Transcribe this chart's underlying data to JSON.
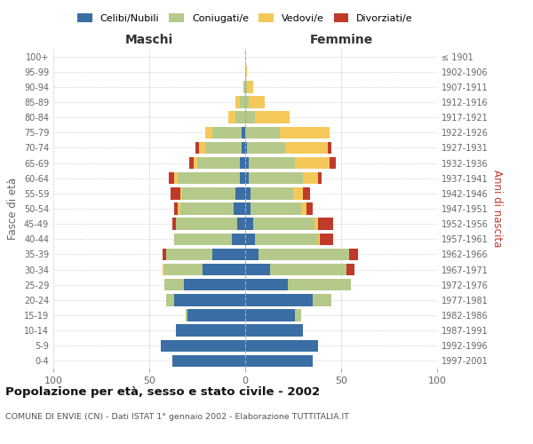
{
  "age_groups": [
    "0-4",
    "5-9",
    "10-14",
    "15-19",
    "20-24",
    "25-29",
    "30-34",
    "35-39",
    "40-44",
    "45-49",
    "50-54",
    "55-59",
    "60-64",
    "65-69",
    "70-74",
    "75-79",
    "80-84",
    "85-89",
    "90-94",
    "95-99",
    "100+"
  ],
  "birth_years": [
    "1997-2001",
    "1992-1996",
    "1987-1991",
    "1982-1986",
    "1977-1981",
    "1972-1976",
    "1967-1971",
    "1962-1966",
    "1957-1961",
    "1952-1956",
    "1947-1951",
    "1942-1946",
    "1937-1941",
    "1932-1936",
    "1927-1931",
    "1922-1926",
    "1917-1921",
    "1912-1916",
    "1907-1911",
    "1902-1906",
    "≤ 1901"
  ],
  "maschi": {
    "celibi": [
      38,
      44,
      36,
      30,
      37,
      32,
      22,
      17,
      7,
      4,
      6,
      5,
      3,
      3,
      2,
      2,
      0,
      0,
      0,
      0,
      0
    ],
    "coniugati": [
      0,
      0,
      0,
      1,
      4,
      10,
      20,
      24,
      30,
      32,
      28,
      28,
      32,
      22,
      19,
      15,
      5,
      3,
      1,
      0,
      0
    ],
    "vedovi": [
      0,
      0,
      0,
      0,
      0,
      0,
      1,
      0,
      0,
      0,
      1,
      1,
      2,
      2,
      3,
      4,
      4,
      2,
      0,
      0,
      0
    ],
    "divorziati": [
      0,
      0,
      0,
      0,
      0,
      0,
      0,
      2,
      0,
      2,
      2,
      5,
      3,
      2,
      2,
      0,
      0,
      0,
      0,
      0,
      0
    ]
  },
  "femmine": {
    "nubili": [
      35,
      38,
      30,
      26,
      35,
      22,
      13,
      7,
      5,
      4,
      3,
      3,
      2,
      2,
      1,
      0,
      0,
      0,
      0,
      0,
      0
    ],
    "coniugate": [
      0,
      0,
      0,
      3,
      10,
      33,
      40,
      47,
      33,
      32,
      26,
      22,
      28,
      24,
      20,
      18,
      5,
      2,
      1,
      0,
      0
    ],
    "vedove": [
      0,
      0,
      0,
      0,
      0,
      0,
      0,
      0,
      1,
      2,
      3,
      5,
      8,
      18,
      22,
      26,
      18,
      8,
      3,
      1,
      0
    ],
    "divorziate": [
      0,
      0,
      0,
      0,
      0,
      0,
      4,
      5,
      7,
      8,
      3,
      4,
      2,
      3,
      2,
      0,
      0,
      0,
      0,
      0,
      0
    ]
  },
  "colors": {
    "celibi": "#3a6ea5",
    "coniugati": "#b5c98a",
    "vedovi": "#f5c85a",
    "divorziati": "#c0392b"
  },
  "title": "Popolazione per età, sesso e stato civile - 2002",
  "subtitle": "COMUNE DI ENVIE (CN) - Dati ISTAT 1° gennaio 2002 - Elaborazione TUTTITALIA.IT",
  "xlabel_left": "Maschi",
  "xlabel_right": "Femmine",
  "ylabel_left": "Fasce di età",
  "ylabel_right": "Anni di nascita",
  "legend_labels": [
    "Celibi/Nubili",
    "Coniugati/e",
    "Vedovi/e",
    "Divorziati/e"
  ],
  "xlim": 100,
  "background_color": "#ffffff",
  "grid_color": "#cccccc"
}
